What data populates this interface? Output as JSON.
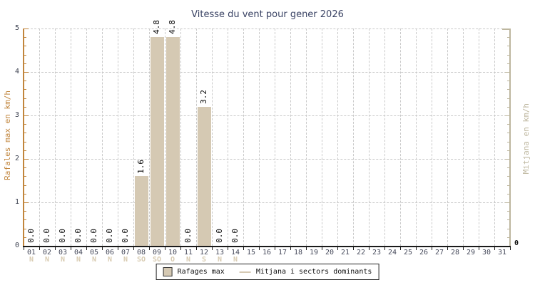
{
  "title": "Vitesse du vent pour gener 2026",
  "axes": {
    "left_label": "Rafales max en km/h",
    "right_label": "Mitjana en km/h"
  },
  "legend": {
    "bar_label": "Rafages max",
    "line_label": "Mitjana i sectors dominants"
  },
  "colors": {
    "title": "#3a4364",
    "bar": "#d5c9b3",
    "left_axis": "#c1853c",
    "right_axis": "#bdb69e",
    "grid": "#c9c9c9",
    "tick_text": "#3a3f4e",
    "day_text": "#45495a",
    "dir_text": "#d8cbb1",
    "value_text": "#000000",
    "x_axis": "#1a1a1a"
  },
  "chart_data": {
    "type": "bar",
    "title": "Vitesse du vent pour gener 2026",
    "xlabel": "",
    "ylabel_left": "Rafales max en km/h",
    "ylabel_right": "Mitjana en km/h",
    "ylim": [
      0,
      5
    ],
    "y_ticks": [
      0,
      1,
      2,
      3,
      4,
      5
    ],
    "minor_tick_step": 0.2,
    "right_axis_tick_labels": [
      "0"
    ],
    "grid": "dashed",
    "legend_position": "bottom-center",
    "categories": [
      "01",
      "02",
      "03",
      "04",
      "05",
      "06",
      "07",
      "08",
      "09",
      "10",
      "11",
      "12",
      "13",
      "14",
      "15",
      "16",
      "17",
      "18",
      "19",
      "20",
      "21",
      "22",
      "23",
      "24",
      "25",
      "26",
      "27",
      "28",
      "29",
      "30",
      "31"
    ],
    "series": [
      {
        "name": "Rafages max",
        "values": [
          0.0,
          0.0,
          0.0,
          0.0,
          0.0,
          0.0,
          0.0,
          1.6,
          4.8,
          4.8,
          0.0,
          3.2,
          0.0,
          0.0,
          null,
          null,
          null,
          null,
          null,
          null,
          null,
          null,
          null,
          null,
          null,
          null,
          null,
          null,
          null,
          null,
          null
        ]
      },
      {
        "name": "Mitjana i sectors dominants",
        "values": [],
        "directions": [
          "N",
          "N",
          "N",
          "N",
          "N",
          "N",
          "N",
          "SO",
          "SO",
          "O",
          "N",
          "S",
          "N",
          "N",
          "",
          "",
          "",
          "",
          "",
          "",
          "",
          "",
          "",
          "",
          "",
          "",
          "",
          "",
          "",
          "",
          ""
        ]
      }
    ]
  }
}
